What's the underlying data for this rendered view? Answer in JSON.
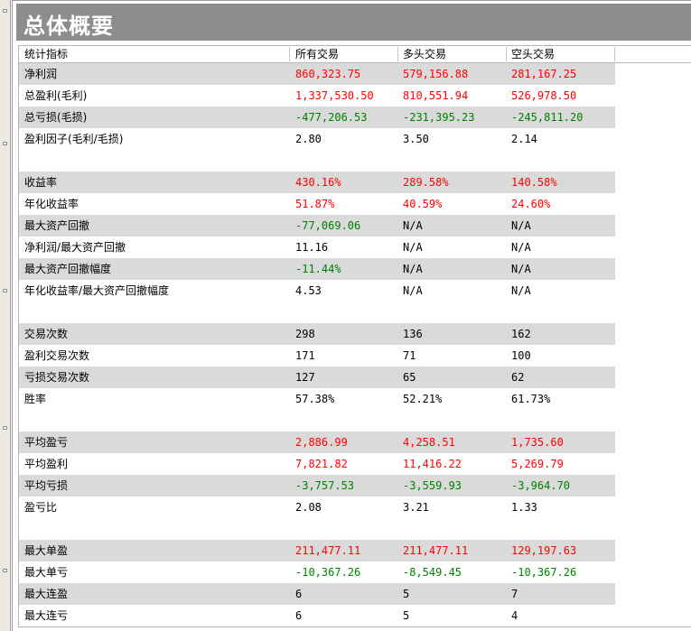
{
  "title": "总体概要",
  "colors": {
    "positive": "#ff0000",
    "negative": "#008000",
    "neutral": "#000000",
    "shade": "#dadada",
    "title_bg": "#8d8d8d"
  },
  "header": {
    "metric": "统计指标",
    "all": "所有交易",
    "long": "多头交易",
    "short": "空头交易"
  },
  "rows": [
    {
      "label": "净利润",
      "all": "860,323.75",
      "long": "579,156.88",
      "short": "281,167.25",
      "color": [
        "red",
        "red",
        "red"
      ]
    },
    {
      "label": "总盈利(毛利)",
      "all": "1,337,530.50",
      "long": "810,551.94",
      "short": "526,978.50",
      "color": [
        "red",
        "red",
        "red"
      ]
    },
    {
      "label": "总亏损(毛损)",
      "all": "-477,206.53",
      "long": "-231,395.23",
      "short": "-245,811.20",
      "color": [
        "green",
        "green",
        "green"
      ]
    },
    {
      "label": "盈利因子(毛利/毛损)",
      "all": "2.80",
      "long": "3.50",
      "short": "2.14",
      "color": [
        "blk",
        "blk",
        "blk"
      ]
    },
    {
      "label": "收益率",
      "all": "430.16%",
      "long": "289.58%",
      "short": "140.58%",
      "color": [
        "red",
        "red",
        "red"
      ]
    },
    {
      "label": "年化收益率",
      "all": "51.87%",
      "long": "40.59%",
      "short": "24.60%",
      "color": [
        "red",
        "red",
        "red"
      ]
    },
    {
      "label": "最大资产回撤",
      "all": "-77,069.06",
      "long": "N/A",
      "short": "N/A",
      "color": [
        "green",
        "blk",
        "blk"
      ]
    },
    {
      "label": "净利润/最大资产回撤",
      "all": "11.16",
      "long": "N/A",
      "short": "N/A",
      "color": [
        "blk",
        "blk",
        "blk"
      ]
    },
    {
      "label": "最大资产回撤幅度",
      "all": "-11.44%",
      "long": "N/A",
      "short": "N/A",
      "color": [
        "green",
        "blk",
        "blk"
      ]
    },
    {
      "label": "年化收益率/最大资产回撤幅度",
      "all": "4.53",
      "long": "N/A",
      "short": "N/A",
      "color": [
        "blk",
        "blk",
        "blk"
      ]
    },
    {
      "label": "交易次数",
      "all": "298",
      "long": "136",
      "short": "162",
      "color": [
        "blk",
        "blk",
        "blk"
      ]
    },
    {
      "label": "盈利交易次数",
      "all": "171",
      "long": "71",
      "short": "100",
      "color": [
        "blk",
        "blk",
        "blk"
      ]
    },
    {
      "label": "亏损交易次数",
      "all": "127",
      "long": "65",
      "short": "62",
      "color": [
        "blk",
        "blk",
        "blk"
      ]
    },
    {
      "label": "胜率",
      "all": "57.38%",
      "long": "52.21%",
      "short": "61.73%",
      "color": [
        "blk",
        "blk",
        "blk"
      ]
    },
    {
      "label": "平均盈亏",
      "all": "2,886.99",
      "long": "4,258.51",
      "short": "1,735.60",
      "color": [
        "red",
        "red",
        "red"
      ]
    },
    {
      "label": "平均盈利",
      "all": "7,821.82",
      "long": "11,416.22",
      "short": "5,269.79",
      "color": [
        "red",
        "red",
        "red"
      ]
    },
    {
      "label": "平均亏损",
      "all": "-3,757.53",
      "long": "-3,559.93",
      "short": "-3,964.70",
      "color": [
        "green",
        "green",
        "green"
      ]
    },
    {
      "label": "盈亏比",
      "all": "2.08",
      "long": "3.21",
      "short": "1.33",
      "color": [
        "blk",
        "blk",
        "blk"
      ]
    },
    {
      "label": "最大单盈",
      "all": "211,477.11",
      "long": "211,477.11",
      "short": "129,197.63",
      "color": [
        "red",
        "red",
        "red"
      ]
    },
    {
      "label": "最大单亏",
      "all": "-10,367.26",
      "long": "-8,549.45",
      "short": "-10,367.26",
      "color": [
        "green",
        "green",
        "green"
      ]
    },
    {
      "label": "最大连盈",
      "all": "6",
      "long": "5",
      "short": "7",
      "color": [
        "blk",
        "blk",
        "blk"
      ]
    },
    {
      "label": "最大连亏",
      "all": "6",
      "long": "5",
      "short": "4",
      "color": [
        "blk",
        "blk",
        "blk"
      ]
    }
  ]
}
